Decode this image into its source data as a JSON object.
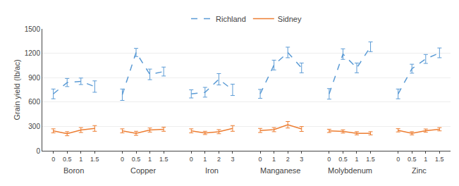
{
  "chart_data": {
    "type": "line",
    "ylabel": "Grain yield (lb/ac)",
    "ylim": [
      0,
      1500
    ],
    "yticks": [
      0,
      300,
      600,
      900,
      1200,
      1500
    ],
    "grid": true,
    "legend": "top",
    "groups": [
      "Boron",
      "Copper",
      "Iron",
      "Manganese",
      "Molybdenum",
      "Zinc"
    ],
    "categories": [
      [
        "0",
        "0.5",
        "1",
        "1.5"
      ],
      [
        "0",
        "0.5",
        "1",
        "1.5"
      ],
      [
        "0",
        "1",
        "2",
        "3"
      ],
      [
        "0",
        "1",
        "2",
        "3"
      ],
      [
        "0",
        "0.5",
        "1",
        "1.5"
      ],
      [
        "0",
        "0.5",
        "1",
        "1.5"
      ]
    ],
    "series": [
      {
        "name": "Richland",
        "color": "#5B9BD5",
        "line_style": "dashed",
        "values": [
          [
            700,
            840,
            855,
            790
          ],
          [
            690,
            1210,
            940,
            975
          ],
          [
            700,
            720,
            880,
            750
          ],
          [
            700,
            1055,
            1210,
            1020
          ],
          [
            700,
            1190,
            1020,
            1280
          ],
          [
            700,
            1010,
            1130,
            1205
          ]
        ],
        "errors": [
          [
            60,
            50,
            40,
            70
          ],
          [
            70,
            50,
            65,
            55
          ],
          [
            50,
            60,
            70,
            70
          ],
          [
            55,
            60,
            65,
            60
          ],
          [
            65,
            65,
            60,
            60
          ],
          [
            60,
            55,
            55,
            60
          ]
        ]
      },
      {
        "name": "Sidney",
        "color": "#ED7D31",
        "line_style": "solid",
        "values": [
          [
            245,
            210,
            255,
            275
          ],
          [
            245,
            215,
            255,
            265
          ],
          [
            245,
            220,
            235,
            275
          ],
          [
            250,
            260,
            320,
            268
          ],
          [
            245,
            238,
            215,
            215
          ],
          [
            252,
            215,
            248,
            265
          ]
        ],
        "errors": [
          [
            25,
            25,
            30,
            35
          ],
          [
            25,
            25,
            25,
            25
          ],
          [
            25,
            20,
            25,
            35
          ],
          [
            25,
            25,
            40,
            30
          ],
          [
            20,
            20,
            20,
            20
          ],
          [
            20,
            20,
            20,
            20
          ]
        ]
      }
    ]
  }
}
